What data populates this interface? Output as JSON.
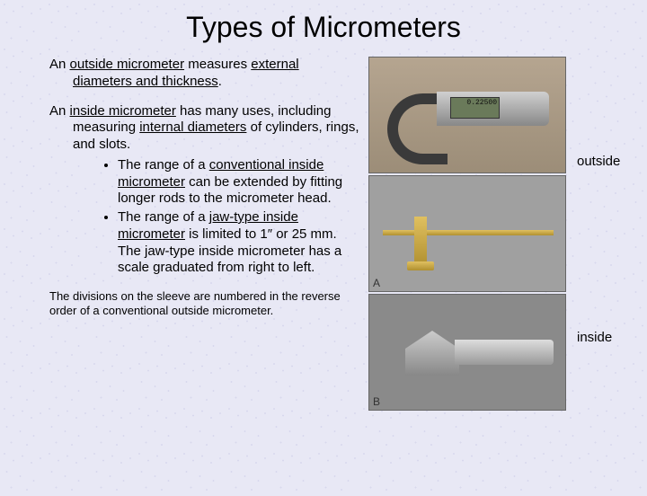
{
  "title": "Types of Micrometers",
  "para1_pre": "An ",
  "para1_u1": "outside micrometer",
  "para1_mid": " measures ",
  "para1_u2": "external diameters and thickness",
  "para1_end": ".",
  "para2_pre": "An ",
  "para2_u1": "inside micrometer",
  "para2_mid": " has many uses, including measuring ",
  "para2_u2": "internal diameters",
  "para2_end": " of cylinders, rings, and slots.",
  "bullet1_pre": "The range of a ",
  "bullet1_u": "conventional inside micrometer",
  "bullet1_end": " can be extended by fitting longer rods to the micrometer head.",
  "bullet2_pre": "The range of a ",
  "bullet2_u": "jaw-type inside micrometer",
  "bullet2_end": " is limited to 1″ or 25 mm. The jaw-type inside micrometer has a scale graduated from right to left.",
  "footnote": "The divisions on the sleeve are numbered in the reverse order of a conventional outside micrometer.",
  "labels": {
    "outside": "outside",
    "inside": "inside"
  },
  "display_reading": "0.22500",
  "corner": {
    "a": "A",
    "b": "B"
  },
  "colors": {
    "background": "#e8e8f5",
    "text": "#000000",
    "img_border": "#666666"
  },
  "fonts": {
    "title_size": 32,
    "body_size": 15,
    "footnote_size": 13
  }
}
